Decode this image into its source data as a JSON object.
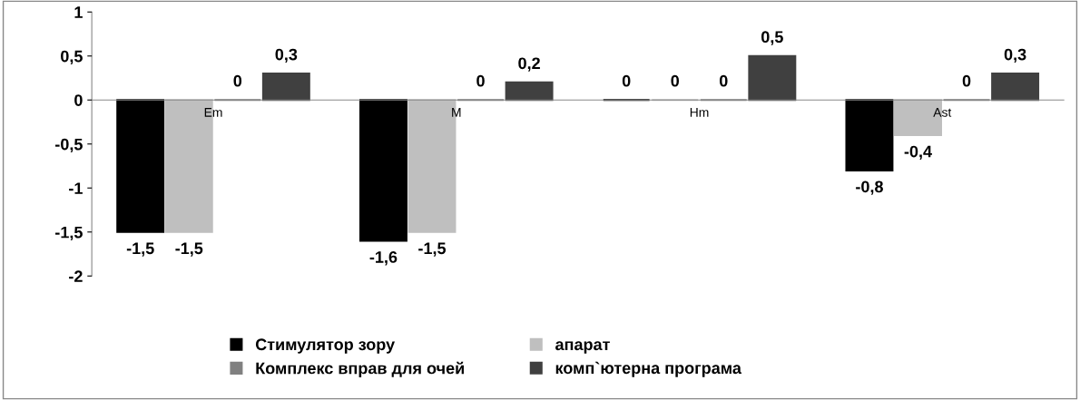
{
  "chart_data": {
    "type": "bar",
    "categories": [
      "Em",
      "M",
      "Hm",
      "Ast"
    ],
    "series": [
      {
        "name": "Стимулятор зору",
        "color": "#000000",
        "values": [
          -1.5,
          -1.6,
          0,
          -0.8
        ],
        "value_labels": [
          "-1,5",
          "-1,6",
          "0",
          "-0,8"
        ]
      },
      {
        "name": "апарат",
        "color": "#bfbfbf",
        "values": [
          -1.5,
          -1.5,
          0,
          -0.4
        ],
        "value_labels": [
          "-1,5",
          "-1,5",
          "0",
          "-0,4"
        ]
      },
      {
        "name": "Комплекс вправ для очей",
        "color": "#808080",
        "values": [
          0,
          0,
          0,
          0
        ],
        "value_labels": [
          "0",
          "0",
          "0",
          "0"
        ]
      },
      {
        "name": "комп`ютерна програма",
        "color": "#404040",
        "values": [
          0.3,
          0.2,
          0.5,
          0.3
        ],
        "value_labels": [
          "0,3",
          "0,2",
          "0,5",
          "0,3"
        ]
      }
    ],
    "ylim": [
      -2,
      1
    ],
    "yticks": [
      {
        "value": -2,
        "label": "-2"
      },
      {
        "value": -1.5,
        "label": "-1,5"
      },
      {
        "value": -1,
        "label": "-1"
      },
      {
        "value": -0.5,
        "label": "-0,5"
      },
      {
        "value": 0,
        "label": "0"
      },
      {
        "value": 0.5,
        "label": "0,5"
      },
      {
        "value": 1,
        "label": "1"
      }
    ],
    "grid": false,
    "legend": "bottom"
  }
}
